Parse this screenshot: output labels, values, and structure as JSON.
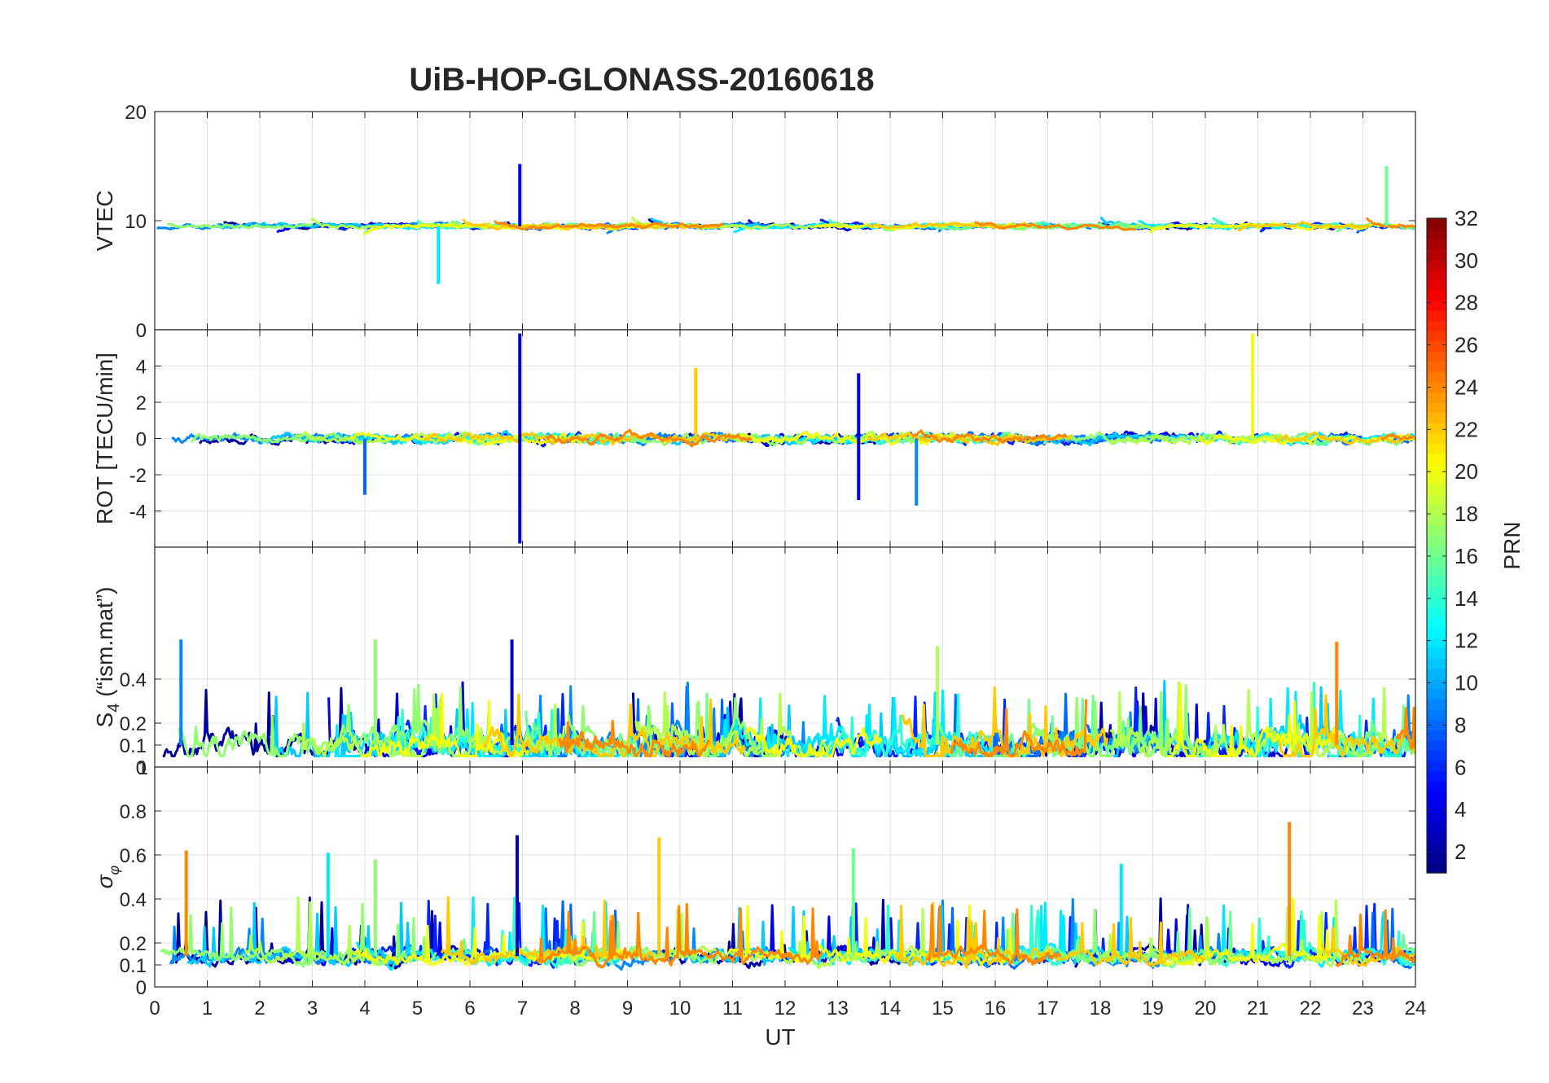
{
  "figure": {
    "title": "UiB-HOP-GLONASS-20160618",
    "xlabel": "UT"
  },
  "chart_data": [
    {
      "type": "line",
      "panel": "vtec",
      "ylabel": "VTEC",
      "xlim": [
        0,
        24
      ],
      "ylim": [
        0,
        20
      ],
      "yticks": [
        10,
        20
      ],
      "grid": true,
      "xticks_labeled": false,
      "baseline": 9.5,
      "amplitude": 1.1,
      "noise": 0.25,
      "description_series": "multiple PRN tracks colored by PRN",
      "highlights": [
        {
          "x": 6.95,
          "y": 15.2,
          "prn": 4
        },
        {
          "x": 23.45,
          "y": 15.0,
          "prn": 16
        },
        {
          "x": 5.4,
          "y": 4.2,
          "prn": 12
        }
      ]
    },
    {
      "type": "line",
      "panel": "rot",
      "ylabel": "ROT [TECU/min]",
      "xlim": [
        0,
        24
      ],
      "ylim": [
        -6,
        6
      ],
      "yticks": [
        -4,
        -2,
        0,
        2,
        4
      ],
      "ytick_labels": [
        "-4",
        "-2",
        "0",
        "2",
        "4"
      ],
      "extra_top_label": "0",
      "grid": true,
      "xticks_labeled": false,
      "baseline": 0,
      "amplitude": 0.25,
      "noise": 0.3,
      "highlights": [
        {
          "x": 6.95,
          "y": 5.8,
          "prn": 3
        },
        {
          "x": 6.95,
          "y": -5.8,
          "prn": 3
        },
        {
          "x": 20.9,
          "y": 5.8,
          "prn": 20
        },
        {
          "x": 13.4,
          "y": 3.6,
          "prn": 4
        },
        {
          "x": 13.4,
          "y": -3.4,
          "prn": 4
        },
        {
          "x": 14.5,
          "y": -3.7,
          "prn": 9
        },
        {
          "x": 10.3,
          "y": 3.9,
          "prn": 22
        },
        {
          "x": 4.0,
          "y": -3.1,
          "prn": 8
        }
      ]
    },
    {
      "type": "line",
      "panel": "s4",
      "ylabel": "S4 (\"ism.mat\")",
      "xlim": [
        0,
        24
      ],
      "ylim": [
        0,
        1
      ],
      "yticks": [
        0.1,
        0.2,
        0.4
      ],
      "ytick_labels": [
        "0.1",
        "0.2",
        "0.4"
      ],
      "bottom_labels": [
        "0",
        "1"
      ],
      "grid": true,
      "xticks_labeled": false,
      "baseline": 0.1,
      "amplitude": 0.15,
      "noise": 0.08,
      "highlights": [
        {
          "x": 6.8,
          "y": 0.58,
          "prn": 3
        },
        {
          "x": 22.5,
          "y": 0.57,
          "prn": 24
        },
        {
          "x": 14.9,
          "y": 0.55,
          "prn": 18
        },
        {
          "x": 4.2,
          "y": 0.58,
          "prn": 17
        },
        {
          "x": 0.5,
          "y": 0.58,
          "prn": 9
        }
      ]
    },
    {
      "type": "line",
      "panel": "sigma_phi",
      "ylabel": "σφ",
      "xlim": [
        0,
        24
      ],
      "ylim": [
        0,
        1
      ],
      "yticks": [
        0,
        0.1,
        0.2,
        0.4,
        0.6,
        0.8
      ],
      "ytick_labels": [
        "0",
        "0.1",
        "0.2",
        "0.4",
        "0.6",
        "0.8"
      ],
      "grid": true,
      "xticks_labeled": true,
      "xticks": [
        0,
        1,
        2,
        3,
        4,
        5,
        6,
        7,
        8,
        9,
        10,
        11,
        12,
        13,
        14,
        15,
        16,
        17,
        18,
        19,
        20,
        21,
        22,
        23,
        24
      ],
      "baseline": 0.14,
      "amplitude": 0.05,
      "noise": 0.04,
      "highlights": [
        {
          "x": 0.6,
          "y": 0.62,
          "prn": 24
        },
        {
          "x": 3.3,
          "y": 0.61,
          "prn": 12
        },
        {
          "x": 4.2,
          "y": 0.58,
          "prn": 17
        },
        {
          "x": 6.9,
          "y": 0.69,
          "prn": 3
        },
        {
          "x": 9.6,
          "y": 0.68,
          "prn": 22
        },
        {
          "x": 13.3,
          "y": 0.63,
          "prn": 16
        },
        {
          "x": 18.4,
          "y": 0.56,
          "prn": 12
        },
        {
          "x": 21.6,
          "y": 0.75,
          "prn": 24
        }
      ]
    }
  ],
  "colorbar": {
    "label": "PRN",
    "min": 1,
    "max": 32,
    "ticks": [
      2,
      4,
      6,
      8,
      10,
      12,
      14,
      16,
      18,
      20,
      22,
      24,
      26,
      28,
      30,
      32
    ]
  },
  "series_prns": [
    2,
    4,
    6,
    8,
    9,
    11,
    12,
    14,
    16,
    17,
    18,
    20,
    22,
    24
  ]
}
